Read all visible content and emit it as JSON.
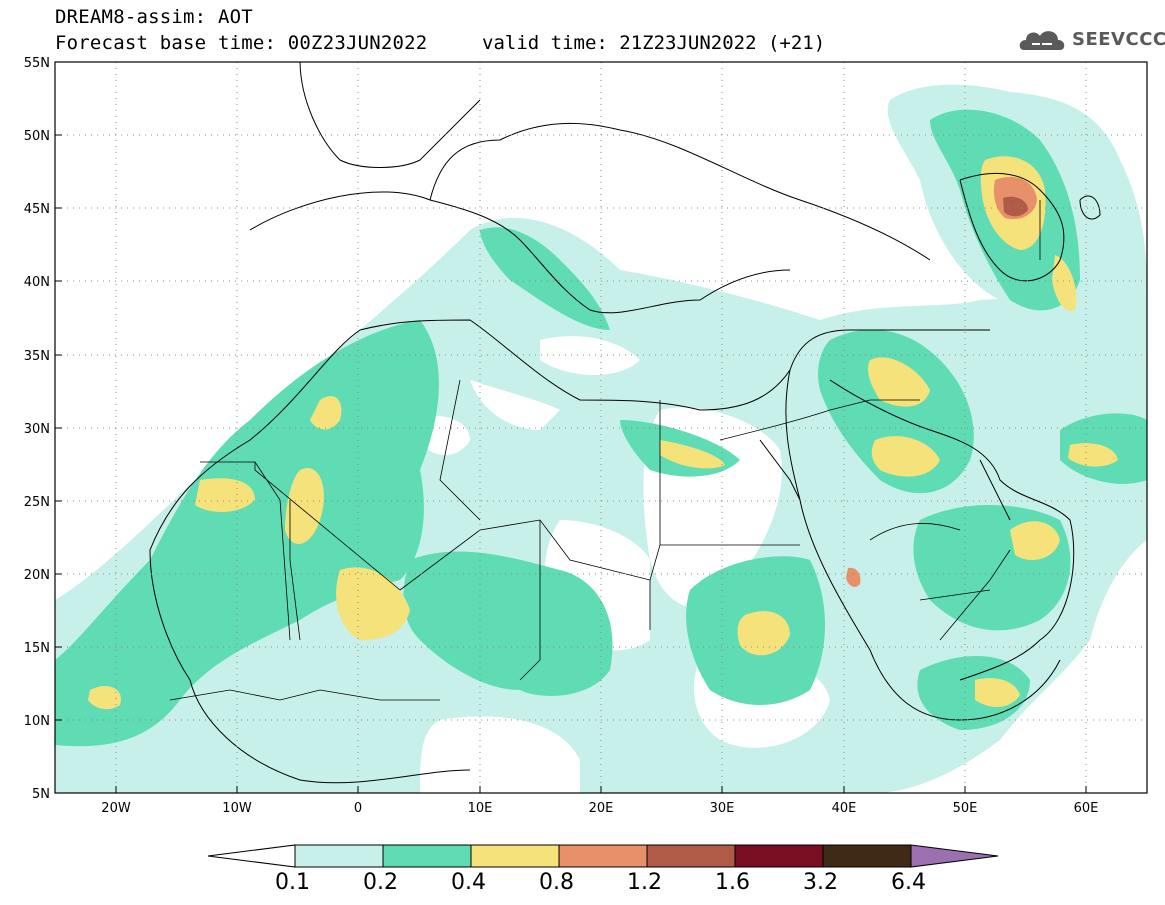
{
  "header": {
    "title_line1": "DREAM8-assim: AOT",
    "title_line2": "Forecast base time: 00Z23JUN2022",
    "valid_time": "valid time: 21Z23JUN2022 (+21)",
    "logo_text": "SEEVCCC",
    "logo_icon": "cloud-icon"
  },
  "map": {
    "lon_range": [
      -25,
      65
    ],
    "lat_range": [
      5,
      55
    ],
    "grid": "dotted",
    "lat_ticks": [
      "55N",
      "50N",
      "45N",
      "40N",
      "35N",
      "30N",
      "25N",
      "20N",
      "15N",
      "10N",
      "5N"
    ],
    "lon_ticks": [
      "20W",
      "10W",
      "0",
      "10E",
      "20E",
      "30E",
      "40E",
      "50E",
      "60E"
    ]
  },
  "colorbar": {
    "labels": [
      "0.1",
      "0.2",
      "0.4",
      "0.8",
      "1.2",
      "1.6",
      "3.2",
      "6.4"
    ],
    "colors": [
      "#c8f0ea",
      "#5fdcb4",
      "#f5e27a",
      "#e8906a",
      "#b05a48",
      "#7a0f24",
      "#3f2a16"
    ],
    "under_color": "#ffffff",
    "over_color": "#9b6fb0"
  },
  "colors": {
    "light": "#c8f0ea",
    "green": "#5fdcb4",
    "yellow": "#f5e27a",
    "orange": "#e8906a",
    "brown": "#b05a48"
  }
}
